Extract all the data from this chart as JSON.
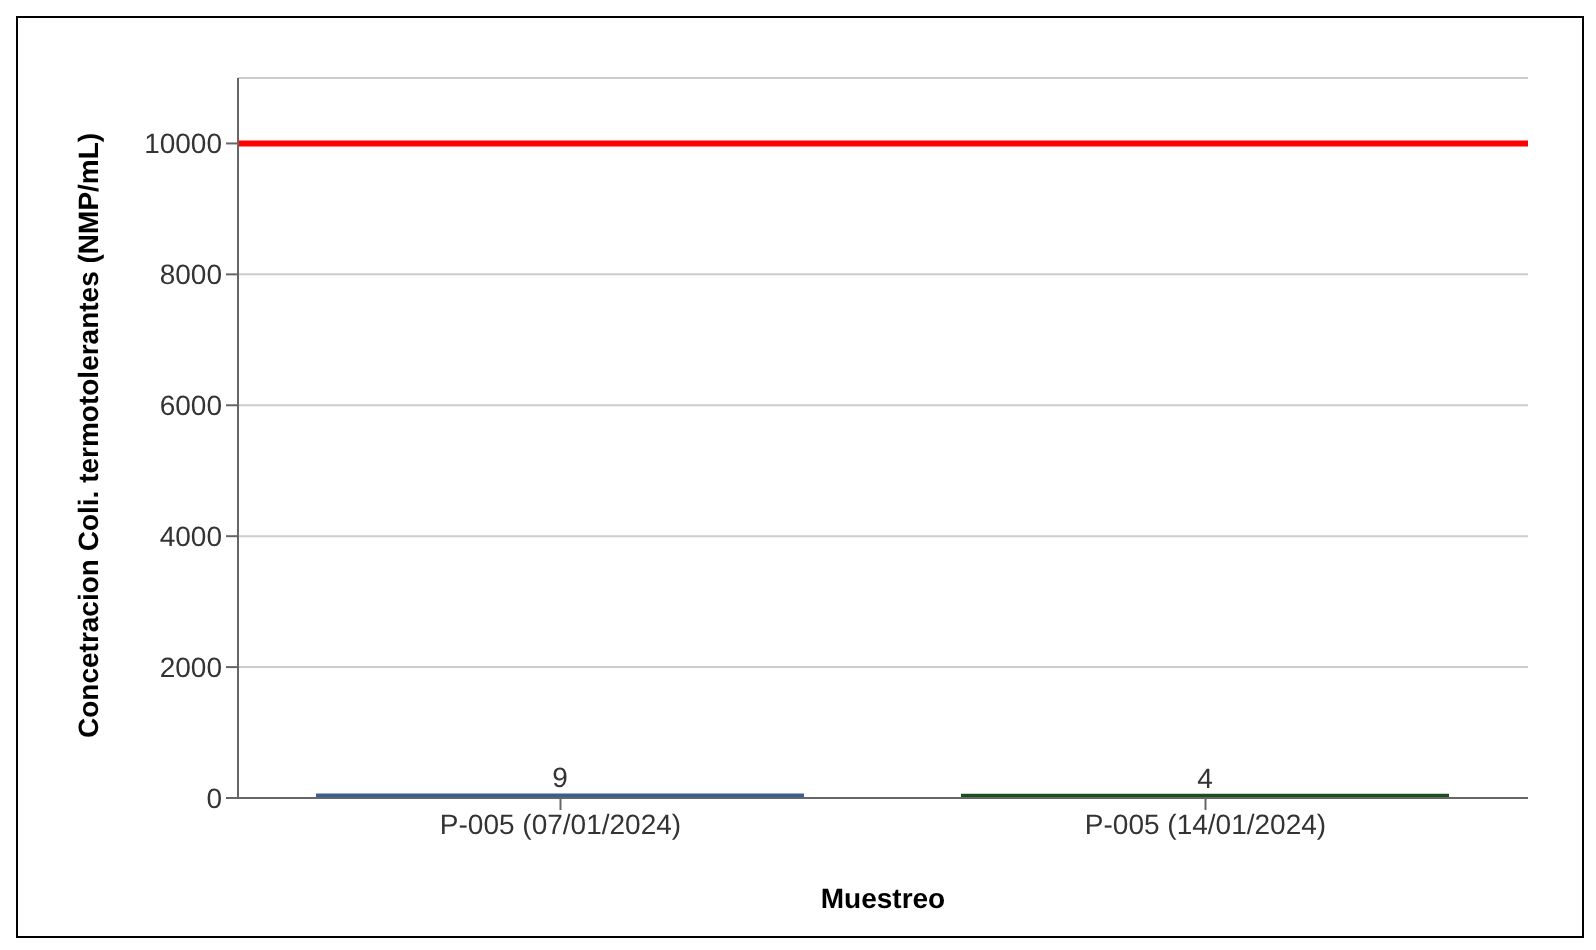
{
  "chart_data": {
    "type": "bar",
    "xlabel": "Muestreo",
    "ylabel": "Concetracion Coli. termotolerantes (NMP/mL)",
    "categories": [
      "P-005 (07/01/2024)",
      "P-005 (14/01/2024)"
    ],
    "values": [
      9,
      4
    ],
    "colors": [
      "#3a5e8f",
      "#1e4d1e"
    ],
    "ylim": [
      0,
      11000
    ],
    "yticks": [
      0,
      2000,
      4000,
      6000,
      8000,
      10000
    ],
    "grid": "y",
    "data_labels": true,
    "ref_lines": [
      {
        "axis": "y",
        "value": 10000,
        "color": "#ff0000"
      }
    ]
  }
}
